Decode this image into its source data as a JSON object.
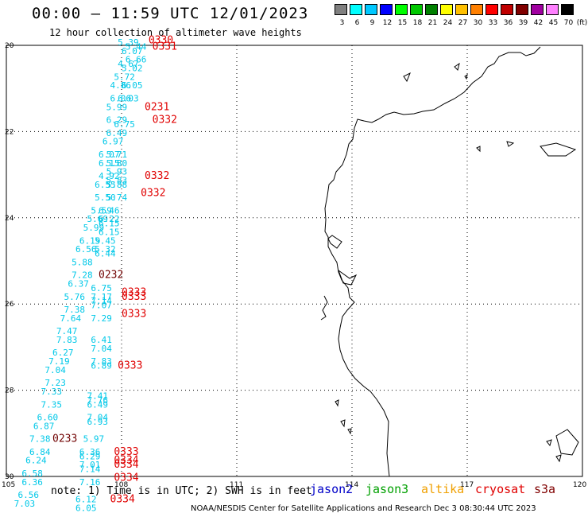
{
  "title": "00:00 – 11:59 UTC 12/01/2023",
  "subtitle": "12 hour collection of altimeter wave heights",
  "legend": {
    "colors": [
      "#808080",
      "#00ffff",
      "#00c8ff",
      "#0000ff",
      "#00ff00",
      "#00c800",
      "#008000",
      "#ffff00",
      "#ffc000",
      "#ff8000",
      "#ff0000",
      "#c00000",
      "#800000",
      "#a000a0",
      "#ff80ff",
      "#000000"
    ],
    "labels": [
      "3",
      "6",
      "9",
      "12",
      "15",
      "18",
      "21",
      "24",
      "27",
      "30",
      "33",
      "36",
      "39",
      "42",
      "45",
      "70",
      "(ft)"
    ]
  },
  "axes": {
    "lon_labels": [
      "105",
      "108",
      "111",
      "114",
      "117",
      "120"
    ],
    "lat_labels": [
      "20",
      "22",
      "24",
      "26",
      "28",
      "30"
    ]
  },
  "colors": {
    "cyan": "#00c8e8",
    "red": "#e00000",
    "darkred": "#700000"
  },
  "swh_cyan": [
    {
      "t": "5.39",
      "lon": 107.9,
      "lat": 20.0
    },
    {
      "t": "6.07",
      "lon": 108.0,
      "lat": 20.2
    },
    {
      "t": "5.44",
      "lon": 108.1,
      "lat": 20.1
    },
    {
      "t": "6.66",
      "lon": 108.1,
      "lat": 20.4
    },
    {
      "t": "4.67",
      "lon": 107.9,
      "lat": 20.5
    },
    {
      "t": "5.02",
      "lon": 108.0,
      "lat": 20.6
    },
    {
      "t": "5.72",
      "lon": 107.8,
      "lat": 20.8
    },
    {
      "t": "6.05",
      "lon": 108.0,
      "lat": 21.0
    },
    {
      "t": "4.86",
      "lon": 107.7,
      "lat": 21.0
    },
    {
      "t": "6.06",
      "lon": 107.7,
      "lat": 21.3
    },
    {
      "t": "6.03",
      "lon": 107.9,
      "lat": 21.3
    },
    {
      "t": "5.99",
      "lon": 107.6,
      "lat": 21.5
    },
    {
      "t": "6.29",
      "lon": 107.6,
      "lat": 21.8
    },
    {
      "t": "6.75",
      "lon": 107.8,
      "lat": 21.9
    },
    {
      "t": "6.49",
      "lon": 107.6,
      "lat": 22.1
    },
    {
      "t": "6.97",
      "lon": 107.5,
      "lat": 22.3
    },
    {
      "t": "6.07",
      "lon": 107.4,
      "lat": 22.6
    },
    {
      "t": "5.71",
      "lon": 107.6,
      "lat": 22.6
    },
    {
      "t": "6.15",
      "lon": 107.4,
      "lat": 22.8
    },
    {
      "t": "5.80",
      "lon": 107.6,
      "lat": 22.8
    },
    {
      "t": "4.92",
      "lon": 107.4,
      "lat": 23.1
    },
    {
      "t": "5.93",
      "lon": 107.6,
      "lat": 23.0
    },
    {
      "t": "5.83",
      "lon": 107.6,
      "lat": 23.2
    },
    {
      "t": "6.55",
      "lon": 107.3,
      "lat": 23.3
    },
    {
      "t": "5.88",
      "lon": 107.6,
      "lat": 23.3
    },
    {
      "t": "5.50",
      "lon": 107.3,
      "lat": 23.6
    },
    {
      "t": "5.74",
      "lon": 107.6,
      "lat": 23.6
    },
    {
      "t": "5.59",
      "lon": 107.2,
      "lat": 23.9
    },
    {
      "t": "6.46",
      "lon": 107.4,
      "lat": 23.9
    },
    {
      "t": "6.22",
      "lon": 107.4,
      "lat": 24.1
    },
    {
      "t": "5.69",
      "lon": 107.1,
      "lat": 24.1
    },
    {
      "t": "6.15",
      "lon": 107.4,
      "lat": 24.2
    },
    {
      "t": "5.99",
      "lon": 107.0,
      "lat": 24.3
    },
    {
      "t": "6.15",
      "lon": 107.4,
      "lat": 24.4
    },
    {
      "t": "6.19",
      "lon": 106.9,
      "lat": 24.6
    },
    {
      "t": "5.45",
      "lon": 107.3,
      "lat": 24.6
    },
    {
      "t": "6.56",
      "lon": 106.8,
      "lat": 24.8
    },
    {
      "t": "5.32",
      "lon": 107.3,
      "lat": 24.8
    },
    {
      "t": "6.44",
      "lon": 107.3,
      "lat": 24.9
    },
    {
      "t": "5.88",
      "lon": 106.7,
      "lat": 25.1
    },
    {
      "t": "7.28",
      "lon": 106.7,
      "lat": 25.4
    },
    {
      "t": "6.37",
      "lon": 106.6,
      "lat": 25.6
    },
    {
      "t": "6.75",
      "lon": 107.2,
      "lat": 25.7
    },
    {
      "t": "5.76",
      "lon": 106.5,
      "lat": 25.9
    },
    {
      "t": "7.17",
      "lon": 107.2,
      "lat": 25.9
    },
    {
      "t": "7.14",
      "lon": 107.2,
      "lat": 26.0
    },
    {
      "t": "7.38",
      "lon": 106.5,
      "lat": 26.2
    },
    {
      "t": "7.07",
      "lon": 107.2,
      "lat": 26.1
    },
    {
      "t": "7.64",
      "lon": 106.4,
      "lat": 26.4
    },
    {
      "t": "7.29",
      "lon": 107.2,
      "lat": 26.4
    },
    {
      "t": "7.47",
      "lon": 106.3,
      "lat": 26.7
    },
    {
      "t": "7.83",
      "lon": 106.3,
      "lat": 26.9
    },
    {
      "t": "6.41",
      "lon": 107.2,
      "lat": 26.9
    },
    {
      "t": "6.27",
      "lon": 106.2,
      "lat": 27.2
    },
    {
      "t": "7.04",
      "lon": 107.2,
      "lat": 27.1
    },
    {
      "t": "7.19",
      "lon": 106.1,
      "lat": 27.4
    },
    {
      "t": "7.83",
      "lon": 107.2,
      "lat": 27.4
    },
    {
      "t": "6.89",
      "lon": 107.2,
      "lat": 27.5
    },
    {
      "t": "7.04",
      "lon": 106.0,
      "lat": 27.6
    },
    {
      "t": "7.23",
      "lon": 106.0,
      "lat": 27.9
    },
    {
      "t": "7.33",
      "lon": 105.9,
      "lat": 28.1
    },
    {
      "t": "7.41",
      "lon": 107.1,
      "lat": 28.2
    },
    {
      "t": "7.35",
      "lon": 105.9,
      "lat": 28.4
    },
    {
      "t": "7.76",
      "lon": 107.1,
      "lat": 28.3
    },
    {
      "t": "6.49",
      "lon": 107.1,
      "lat": 28.4
    },
    {
      "t": "6.60",
      "lon": 105.8,
      "lat": 28.7
    },
    {
      "t": "7.04",
      "lon": 107.1,
      "lat": 28.7
    },
    {
      "t": "6.93",
      "lon": 107.1,
      "lat": 28.8
    },
    {
      "t": "6.87",
      "lon": 105.7,
      "lat": 28.9
    },
    {
      "t": "5.97",
      "lon": 107.0,
      "lat": 29.2
    },
    {
      "t": "7.38",
      "lon": 105.6,
      "lat": 29.2
    },
    {
      "t": "6.84",
      "lon": 105.6,
      "lat": 29.5
    },
    {
      "t": "6.36",
      "lon": 106.9,
      "lat": 29.5
    },
    {
      "t": "6.29",
      "lon": 106.9,
      "lat": 29.6
    },
    {
      "t": "6.24",
      "lon": 105.5,
      "lat": 29.7
    },
    {
      "t": "7.01",
      "lon": 106.9,
      "lat": 29.8
    },
    {
      "t": "7.14",
      "lon": 106.9,
      "lat": 29.9
    },
    {
      "t": "6.58",
      "lon": 105.4,
      "lat": 30.0
    },
    {
      "t": "7.16",
      "lon": 106.9,
      "lat": 30.2
    },
    {
      "t": "6.36",
      "lon": 105.4,
      "lat": 30.2
    },
    {
      "t": "6.56",
      "lon": 105.3,
      "lat": 30.5
    },
    {
      "t": "6.12",
      "lon": 106.8,
      "lat": 30.6
    },
    {
      "t": "7.03",
      "lon": 105.2,
      "lat": 30.7
    },
    {
      "t": "6.05",
      "lon": 106.8,
      "lat": 30.8
    }
  ],
  "time_red": [
    {
      "t": "0330",
      "lon": 108.7,
      "lat": 19.95
    },
    {
      "t": "0331",
      "lon": 108.8,
      "lat": 20.1
    },
    {
      "t": "0231",
      "lon": 108.6,
      "lat": 21.5
    },
    {
      "t": "0332",
      "lon": 108.8,
      "lat": 21.8
    },
    {
      "t": "0332",
      "lon": 108.6,
      "lat": 23.1
    },
    {
      "t": "0332",
      "lon": 108.5,
      "lat": 23.5
    },
    {
      "t": "0333",
      "lon": 108.0,
      "lat": 25.8
    },
    {
      "t": "0333",
      "lon": 108.0,
      "lat": 25.9
    },
    {
      "t": "0333",
      "lon": 108.0,
      "lat": 26.3
    },
    {
      "t": "0333",
      "lon": 107.9,
      "lat": 27.5
    },
    {
      "t": "0333",
      "lon": 107.8,
      "lat": 29.5
    },
    {
      "t": "0334",
      "lon": 107.8,
      "lat": 29.7
    },
    {
      "t": "0334",
      "lon": 107.8,
      "lat": 29.8
    },
    {
      "t": "0334",
      "lon": 107.8,
      "lat": 30.1
    },
    {
      "t": "0334",
      "lon": 107.7,
      "lat": 30.6
    }
  ],
  "time_darkred": [
    {
      "t": "0232",
      "lon": 107.4,
      "lat": 25.4
    },
    {
      "t": "0233",
      "lon": 106.2,
      "lat": 29.2
    }
  ],
  "note": "note: 1) Time is in UTC; 2) SWH is in feet",
  "satellites": [
    {
      "name": "jason2",
      "color": "#0000c8"
    },
    {
      "name": "jason3",
      "color": "#00a000"
    },
    {
      "name": "altika",
      "color": "#f0a000"
    },
    {
      "name": "cryosat",
      "color": "#e00000"
    },
    {
      "name": "s3a",
      "color": "#800000"
    }
  ],
  "credit": "NOAA/NESDIS Center for Satellite Applications and Research   Dec  3 08:30:44 UTC 2023"
}
